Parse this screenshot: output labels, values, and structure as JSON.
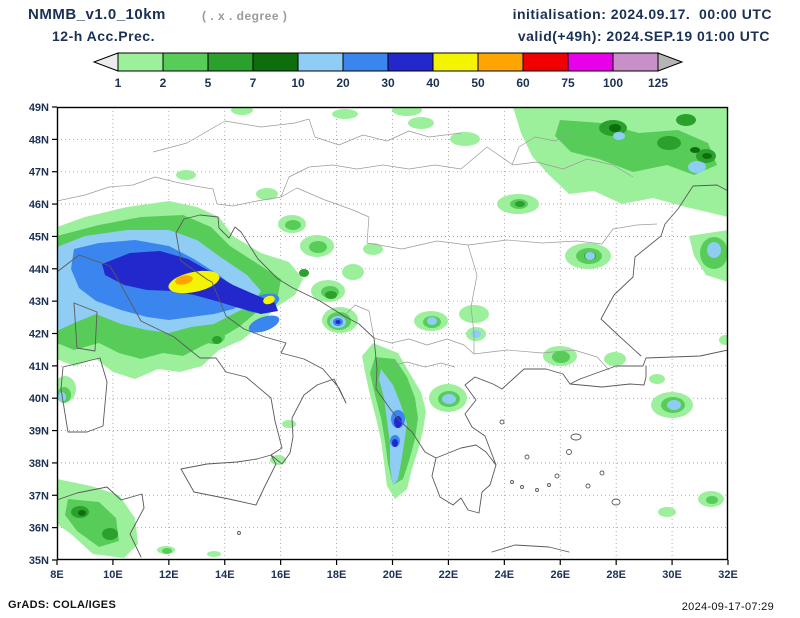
{
  "header": {
    "model_title": "NMMB_v1.0_10km",
    "resolution_note": "( . x . degree )",
    "product": "12-h Acc.Prec.",
    "init_label": "initialisation: 2024.09.17.  00:00 UTC",
    "valid_label": "valid(+49h): 2024.SEP.19 01:00 UTC"
  },
  "colorbar": {
    "tick_labels": [
      "1",
      "2",
      "5",
      "7",
      "10",
      "20",
      "30",
      "40",
      "50",
      "60",
      "75",
      "100",
      "125"
    ],
    "segment_colors": [
      "#9cf09c",
      "#58cc58",
      "#2ca02c",
      "#0e6e0e",
      "#8fcdf5",
      "#3a86ee",
      "#2228cc",
      "#f4f400",
      "#ffa500",
      "#f00000",
      "#e800e8",
      "#c98fc9"
    ],
    "arrow_left_color": "#ececec",
    "arrow_right_color": "#b5b5b5"
  },
  "map": {
    "lat_ticks": [
      "49N",
      "48N",
      "47N",
      "46N",
      "45N",
      "44N",
      "43N",
      "42N",
      "41N",
      "40N",
      "39N",
      "38N",
      "37N",
      "36N",
      "35N"
    ],
    "lon_ticks": [
      "8E",
      "10E",
      "12E",
      "14E",
      "16E",
      "18E",
      "20E",
      "22E",
      "24E",
      "26E",
      "28E",
      "30E",
      "32E"
    ]
  },
  "footer": {
    "credit": "GrADS: COLA/IGES",
    "timestamp": "2024-09-17-07:29"
  }
}
